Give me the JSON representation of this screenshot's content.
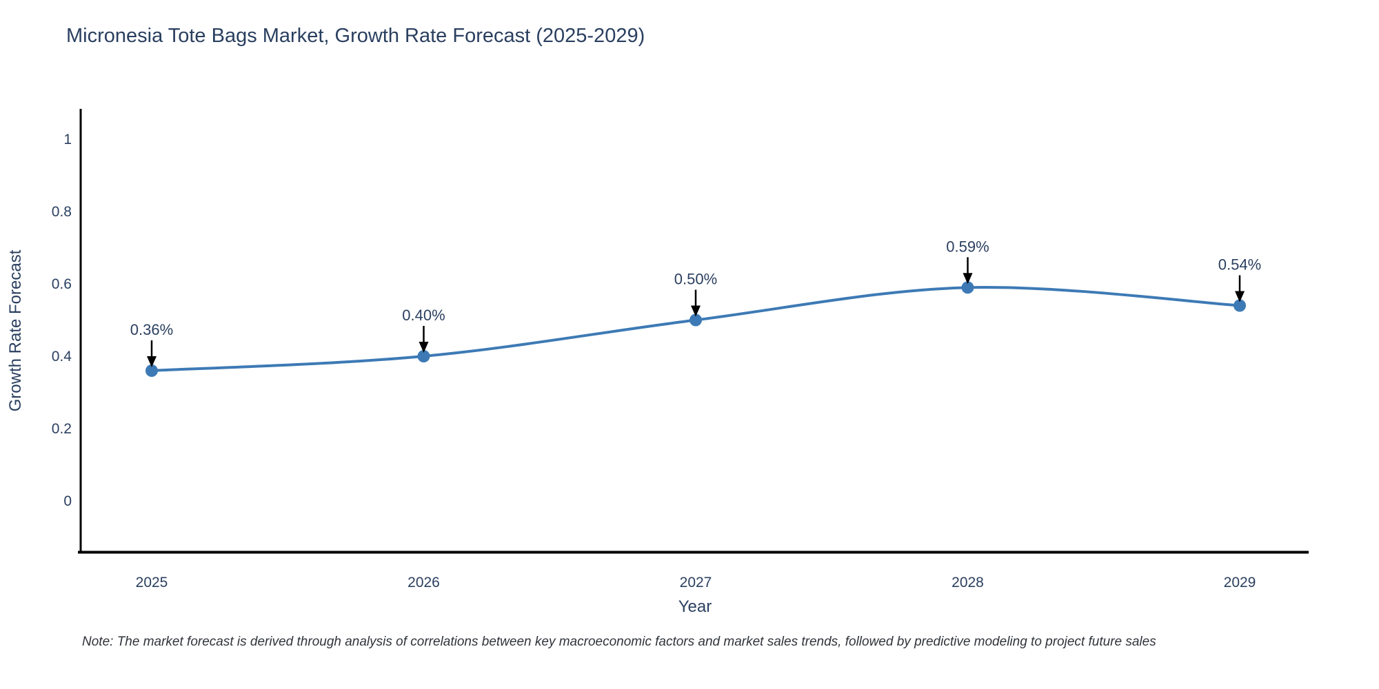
{
  "title": "Micronesia Tote Bags Market, Growth Rate Forecast (2025-2029)",
  "note": {
    "text": "Note: The market forecast is derived through analysis of correlations between key macroeconomic factors and market sales trends, followed by predictive modeling to project future sales"
  },
  "chart_data": {
    "type": "line",
    "title": "Micronesia Tote Bags Market, Growth Rate Forecast (2025-2029)",
    "xlabel": "Year",
    "ylabel": "Growth Rate Forecast",
    "x": [
      2025,
      2026,
      2027,
      2028,
      2029
    ],
    "xtick_labels": [
      "2025",
      "2026",
      "2027",
      "2028",
      "2029"
    ],
    "values": [
      0.36,
      0.4,
      0.5,
      0.59,
      0.54
    ],
    "point_labels": [
      "0.36%",
      "0.40%",
      "0.50%",
      "0.59%",
      "0.54%"
    ],
    "yticks": [
      0,
      0.2,
      0.4,
      0.6,
      0.8,
      1
    ],
    "ytick_labels": [
      "0",
      "0.2",
      "0.4",
      "0.6",
      "0.8",
      "1"
    ],
    "ylim": [
      -0.15,
      1.08
    ],
    "line_shape": "spline",
    "grid": false,
    "legend": "none",
    "line_color": "#3d7ab5",
    "marker_color": "#3d7ab5",
    "arrow_color": "#000000",
    "axis_color": "#000000",
    "text_color": "#2a3f5f"
  }
}
